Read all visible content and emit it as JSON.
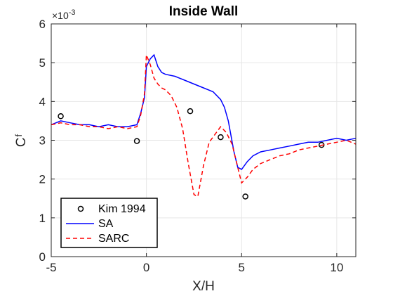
{
  "chart_data": {
    "type": "line",
    "title": "Inside Wall",
    "xlabel": "X/H",
    "ylabel_main": "C",
    "ylabel_sub": "f",
    "y_exponent_base": "×10",
    "y_exponent_power": "-3",
    "xlim": [
      -5,
      11
    ],
    "ylim": [
      0,
      6
    ],
    "xticks": [
      -5,
      0,
      5,
      10
    ],
    "yticks": [
      0,
      1,
      2,
      3,
      4,
      5,
      6
    ],
    "grid": true,
    "legend_position": "bottom-left",
    "series": [
      {
        "name": "Kim 1994",
        "style": "markers",
        "color": "#000000",
        "x": [
          -4.5,
          -0.5,
          2.3,
          3.9,
          5.2,
          9.2
        ],
        "y": [
          3.62,
          2.98,
          3.75,
          3.08,
          1.55,
          2.88
        ]
      },
      {
        "name": "SA",
        "style": "solid",
        "color": "#0000ff",
        "x": [
          -5,
          -4.5,
          -4,
          -3.5,
          -3,
          -2.5,
          -2,
          -1.5,
          -1,
          -0.5,
          -0.3,
          -0.1,
          0,
          0.2,
          0.4,
          0.6,
          0.8,
          1,
          1.5,
          2,
          2.5,
          3,
          3.5,
          3.9,
          4.1,
          4.3,
          4.6,
          4.8,
          5,
          5.3,
          5.6,
          6,
          6.5,
          7,
          7.5,
          8,
          8.5,
          9,
          9.5,
          10,
          10.5,
          11
        ],
        "y": [
          3.4,
          3.5,
          3.45,
          3.4,
          3.4,
          3.35,
          3.4,
          3.35,
          3.35,
          3.4,
          3.7,
          4.1,
          4.9,
          5.1,
          5.2,
          4.9,
          4.75,
          4.7,
          4.65,
          4.55,
          4.45,
          4.35,
          4.25,
          4.05,
          3.85,
          3.5,
          2.7,
          2.3,
          2.25,
          2.45,
          2.6,
          2.7,
          2.75,
          2.8,
          2.85,
          2.9,
          2.95,
          2.95,
          3.0,
          3.05,
          3.0,
          3.05
        ]
      },
      {
        "name": "SARC",
        "style": "dashed",
        "color": "#ff0000",
        "x": [
          -5,
          -4.5,
          -4,
          -3.5,
          -3,
          -2.5,
          -2,
          -1.5,
          -1,
          -0.5,
          -0.3,
          -0.1,
          0,
          0.2,
          0.4,
          0.6,
          0.8,
          1,
          1.3,
          1.6,
          1.9,
          2.2,
          2.5,
          2.7,
          3,
          3.3,
          3.6,
          3.9,
          4.2,
          4.5,
          4.8,
          5,
          5.3,
          5.6,
          6,
          6.5,
          7,
          7.5,
          8,
          8.5,
          9,
          9.5,
          10,
          10.5,
          11
        ],
        "y": [
          3.4,
          3.45,
          3.4,
          3.4,
          3.35,
          3.35,
          3.3,
          3.35,
          3.3,
          3.35,
          3.65,
          4.2,
          5.2,
          4.95,
          4.6,
          4.45,
          4.35,
          4.3,
          4.15,
          3.85,
          3.3,
          2.4,
          1.6,
          1.55,
          2.35,
          2.95,
          3.15,
          3.35,
          3.2,
          2.9,
          2.3,
          1.9,
          2.05,
          2.25,
          2.4,
          2.5,
          2.6,
          2.65,
          2.75,
          2.8,
          2.85,
          2.9,
          2.95,
          3.0,
          2.9
        ]
      }
    ]
  }
}
